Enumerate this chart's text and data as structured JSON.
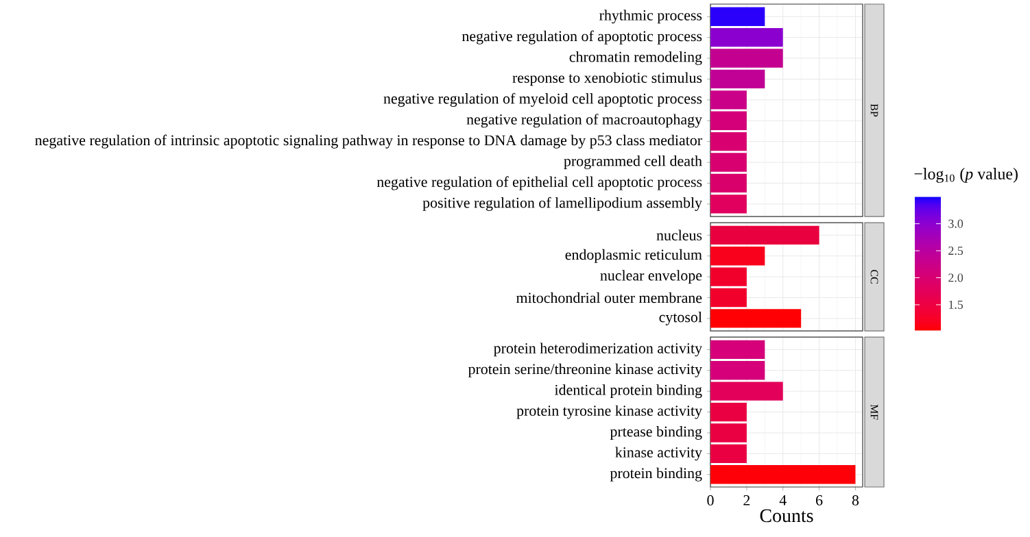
{
  "chart_data": [
    {
      "type": "bar",
      "orientation": "horizontal",
      "annotations": [
        "BP"
      ],
      "categories": [
        "rhythmic process",
        "negative regulation of apoptotic process",
        "chromatin remodeling",
        "response to xenobiotic stimulus",
        "negative regulation of myeloid cell apoptotic process",
        "negative regulation of macroautophagy",
        "negative regulation of intrinsic apoptotic signaling pathway in response to DNA damage by p53 class mediator",
        "programmed cell death",
        "negative regulation of epithelial cell apoptotic process",
        "positive regulation of lamellipodium assembly"
      ],
      "values": [
        3,
        4,
        4,
        3,
        2,
        2,
        2,
        2,
        2,
        2
      ],
      "cvalues": [
        3.45,
        3.0,
        2.35,
        2.4,
        2.25,
        2.1,
        2.0,
        2.0,
        1.95,
        1.8
      ],
      "xlim": [
        0,
        8.4
      ],
      "xticks": [
        0,
        2,
        4,
        6,
        8
      ],
      "grid": true,
      "tick_labels": "y",
      "clabel": "−log$_{10}$ (*p* value)",
      "clim": [
        1.03,
        3.49
      ],
      "cticks": [
        1.5,
        {
          "value": 2,
          "label": "2.0"
        },
        2.5,
        {
          "value": 3,
          "label": "3.0"
        }
      ]
    },
    {
      "type": "bar",
      "orientation": "horizontal",
      "annotations": [
        "CC"
      ],
      "categories": [
        "nucleus",
        "endoplasmic reticulum",
        "nuclear envelope",
        "mitochondrial outer membrane",
        "cytosol"
      ],
      "values": [
        6,
        3,
        2,
        2,
        5
      ],
      "colors": [
        "#e9003e",
        "#f9001c",
        "#f2002c",
        "#f2002c",
        "#ff0004"
      ],
      "xlim": [
        0,
        8.4
      ],
      "xticks": [
        0,
        2,
        4,
        6,
        8
      ],
      "grid": true,
      "tick_labels": "y"
    },
    {
      "type": "bar",
      "orientation": "horizontal",
      "annotations": [
        "MF"
      ],
      "xlabel": "Counts",
      "categories": [
        "protein heterodimerization activity",
        "protein serine/threonine kinase activity",
        "identical protein binding",
        "protein tyrosine kinase activity",
        "prtease binding",
        "kinase activity",
        "protein binding"
      ],
      "values": [
        3,
        3,
        4,
        2,
        2,
        2,
        8
      ],
      "colors": [
        "#d5007a",
        "#d5007a",
        "#e2005a",
        "#ea0042",
        "#ea0042",
        "#ea0042",
        "#fe0008"
      ],
      "xlim": [
        0,
        8.4
      ],
      "xticks": [
        0,
        2,
        4,
        6,
        8
      ],
      "grid": true
    }
  ]
}
